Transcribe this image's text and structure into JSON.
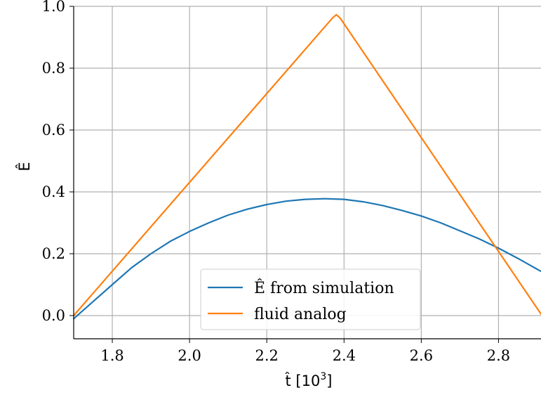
{
  "chart_data": {
    "type": "line",
    "xlabel": "t̂ [10",
    "xlabel_exp": "3",
    "xlabel_close": "]",
    "ylabel": "Ê",
    "xlim": [
      1.7,
      2.91
    ],
    "ylim": [
      -0.075,
      1.0
    ],
    "grid": true,
    "legend_position": "lower-center",
    "x_ticks": [
      1.8,
      2.0,
      2.2,
      2.4,
      2.6,
      2.8
    ],
    "x_tick_labels": [
      "1.8",
      "2.0",
      "2.2",
      "2.4",
      "2.6",
      "2.8"
    ],
    "y_ticks": [
      0.0,
      0.2,
      0.4,
      0.6,
      0.8,
      1.0
    ],
    "y_tick_labels": [
      "0.0",
      "0.2",
      "0.4",
      "0.6",
      "0.8",
      "1.0"
    ],
    "series": [
      {
        "name": "Ê from simulation",
        "color": "#1f77b4",
        "x": [
          1.7,
          1.75,
          1.8,
          1.85,
          1.9,
          1.95,
          2.0,
          2.05,
          2.1,
          2.15,
          2.2,
          2.25,
          2.3,
          2.35,
          2.4,
          2.45,
          2.5,
          2.55,
          2.6,
          2.65,
          2.7,
          2.75,
          2.8,
          2.85,
          2.91
        ],
        "y": [
          -0.01,
          0.045,
          0.1,
          0.155,
          0.2,
          0.24,
          0.272,
          0.3,
          0.325,
          0.344,
          0.359,
          0.37,
          0.376,
          0.378,
          0.376,
          0.368,
          0.356,
          0.34,
          0.322,
          0.3,
          0.274,
          0.248,
          0.218,
          0.185,
          0.143
        ]
      },
      {
        "name": "fluid analog",
        "color": "#ff7f0e",
        "x": [
          1.7,
          2.37,
          2.38,
          2.39,
          2.91
        ],
        "y": [
          0.0,
          0.962,
          0.973,
          0.962,
          0.005
        ]
      }
    ]
  }
}
